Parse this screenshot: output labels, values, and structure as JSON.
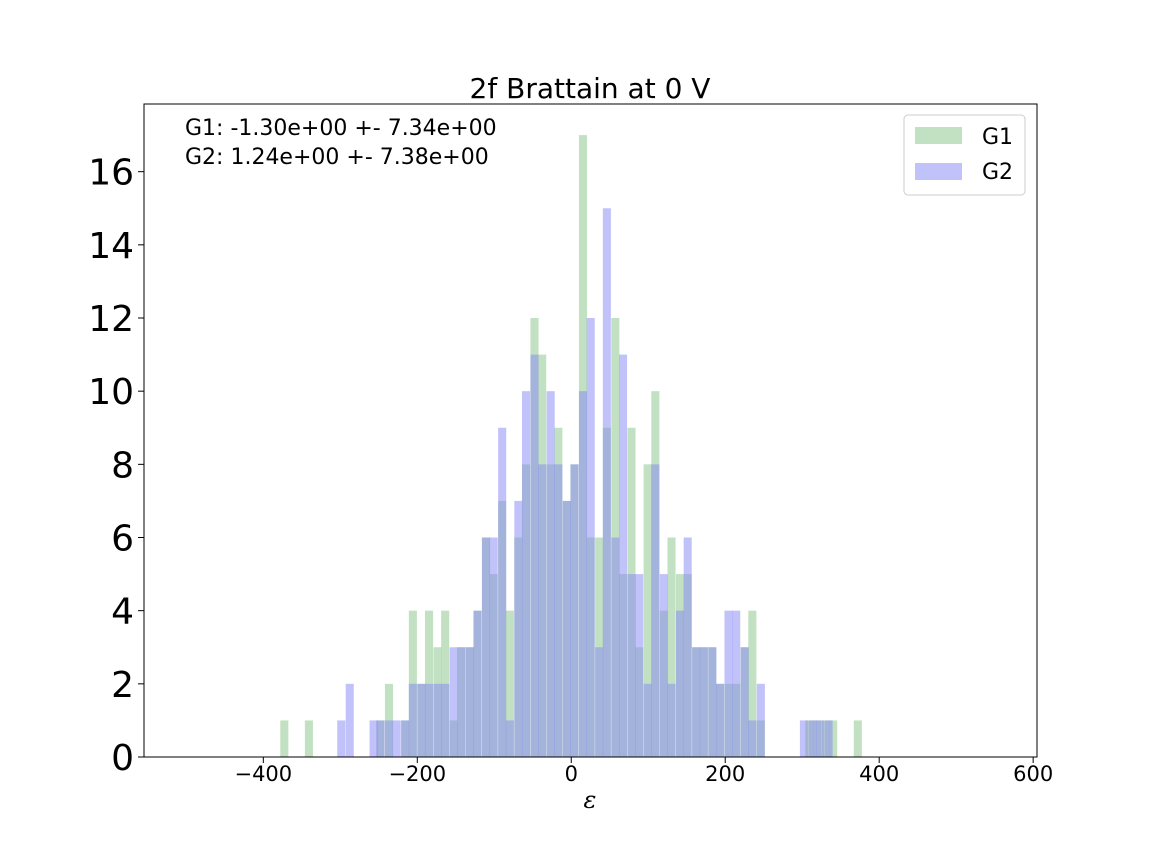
{
  "chart_data": {
    "type": "bar",
    "title": "2f Brattain at 0 V",
    "xlabel": "ε",
    "ylabel": "",
    "xlim": [
      -555,
      605
    ],
    "ylim": [
      0,
      17.85
    ],
    "xticks": [
      -400,
      -200,
      0,
      200,
      400,
      600
    ],
    "yticks": [
      0,
      2,
      4,
      6,
      8,
      10,
      12,
      14,
      16
    ],
    "xtick_labels": [
      "−400",
      "−200",
      "0",
      "200",
      "400",
      "600"
    ],
    "ytick_labels": [
      "0",
      "2",
      "4",
      "6",
      "8",
      "10",
      "12",
      "14",
      "16"
    ],
    "grid": false,
    "legend_position": "top-right",
    "annotations": [
      "G1: -1.30e+00 +- 7.34e+00",
      "G2: 1.24e+00 +- 7.38e+00"
    ],
    "bin_width": 10.5,
    "series": [
      {
        "name": "G1",
        "color": "#8fc98f",
        "alpha": 0.55,
        "bins": [
          [
            -378,
            1
          ],
          [
            -346,
            1
          ],
          [
            -253,
            1
          ],
          [
            -242,
            2
          ],
          [
            -221,
            1
          ],
          [
            -211,
            4
          ],
          [
            -200,
            2
          ],
          [
            -190,
            4
          ],
          [
            -179,
            3
          ],
          [
            -169,
            4
          ],
          [
            -158,
            1
          ],
          [
            -148,
            3
          ],
          [
            -137,
            3
          ],
          [
            -127,
            4
          ],
          [
            -116,
            6
          ],
          [
            -106,
            5
          ],
          [
            -95,
            7
          ],
          [
            -85,
            4
          ],
          [
            -74,
            6
          ],
          [
            -64,
            8
          ],
          [
            -53,
            12
          ],
          [
            -43,
            11
          ],
          [
            -32,
            8
          ],
          [
            -22,
            9
          ],
          [
            -11,
            7
          ],
          [
            -1,
            8
          ],
          [
            10,
            17
          ],
          [
            20,
            6
          ],
          [
            31,
            6
          ],
          [
            41,
            9
          ],
          [
            52,
            12
          ],
          [
            62,
            5
          ],
          [
            73,
            9
          ],
          [
            83,
            3
          ],
          [
            94,
            8
          ],
          [
            104,
            10
          ],
          [
            115,
            4
          ],
          [
            125,
            6
          ],
          [
            136,
            5
          ],
          [
            146,
            5
          ],
          [
            157,
            3
          ],
          [
            167,
            3
          ],
          [
            178,
            3
          ],
          [
            188,
            2
          ],
          [
            199,
            2
          ],
          [
            209,
            2
          ],
          [
            220,
            3
          ],
          [
            230,
            4
          ],
          [
            241,
            1
          ],
          [
            304,
            1
          ],
          [
            314,
            1
          ],
          [
            325,
            1
          ],
          [
            335,
            1
          ],
          [
            367,
            1
          ]
        ]
      },
      {
        "name": "G2",
        "color": "#8585f5",
        "alpha": 0.5,
        "bins": [
          [
            -304,
            1
          ],
          [
            -293,
            2
          ],
          [
            -262,
            1
          ],
          [
            -253,
            1
          ],
          [
            -242,
            1
          ],
          [
            -232,
            1
          ],
          [
            -221,
            1
          ],
          [
            -211,
            2
          ],
          [
            -200,
            2
          ],
          [
            -190,
            2
          ],
          [
            -179,
            2
          ],
          [
            -169,
            2
          ],
          [
            -158,
            3
          ],
          [
            -148,
            3
          ],
          [
            -137,
            3
          ],
          [
            -127,
            4
          ],
          [
            -116,
            6
          ],
          [
            -106,
            6
          ],
          [
            -95,
            9
          ],
          [
            -85,
            1
          ],
          [
            -74,
            7
          ],
          [
            -64,
            10
          ],
          [
            -53,
            11
          ],
          [
            -43,
            8
          ],
          [
            -32,
            10
          ],
          [
            -22,
            8
          ],
          [
            -11,
            7
          ],
          [
            -1,
            8
          ],
          [
            10,
            10
          ],
          [
            20,
            12
          ],
          [
            31,
            3
          ],
          [
            41,
            15
          ],
          [
            52,
            6
          ],
          [
            62,
            11
          ],
          [
            73,
            5
          ],
          [
            83,
            5
          ],
          [
            94,
            2
          ],
          [
            104,
            8
          ],
          [
            115,
            5
          ],
          [
            125,
            2
          ],
          [
            136,
            4
          ],
          [
            146,
            6
          ],
          [
            157,
            3
          ],
          [
            167,
            3
          ],
          [
            178,
            3
          ],
          [
            188,
            2
          ],
          [
            199,
            4
          ],
          [
            209,
            4
          ],
          [
            220,
            3
          ],
          [
            230,
            1
          ],
          [
            241,
            2
          ],
          [
            297,
            1
          ],
          [
            308,
            1
          ],
          [
            318,
            1
          ],
          [
            329,
            1
          ]
        ]
      }
    ]
  }
}
